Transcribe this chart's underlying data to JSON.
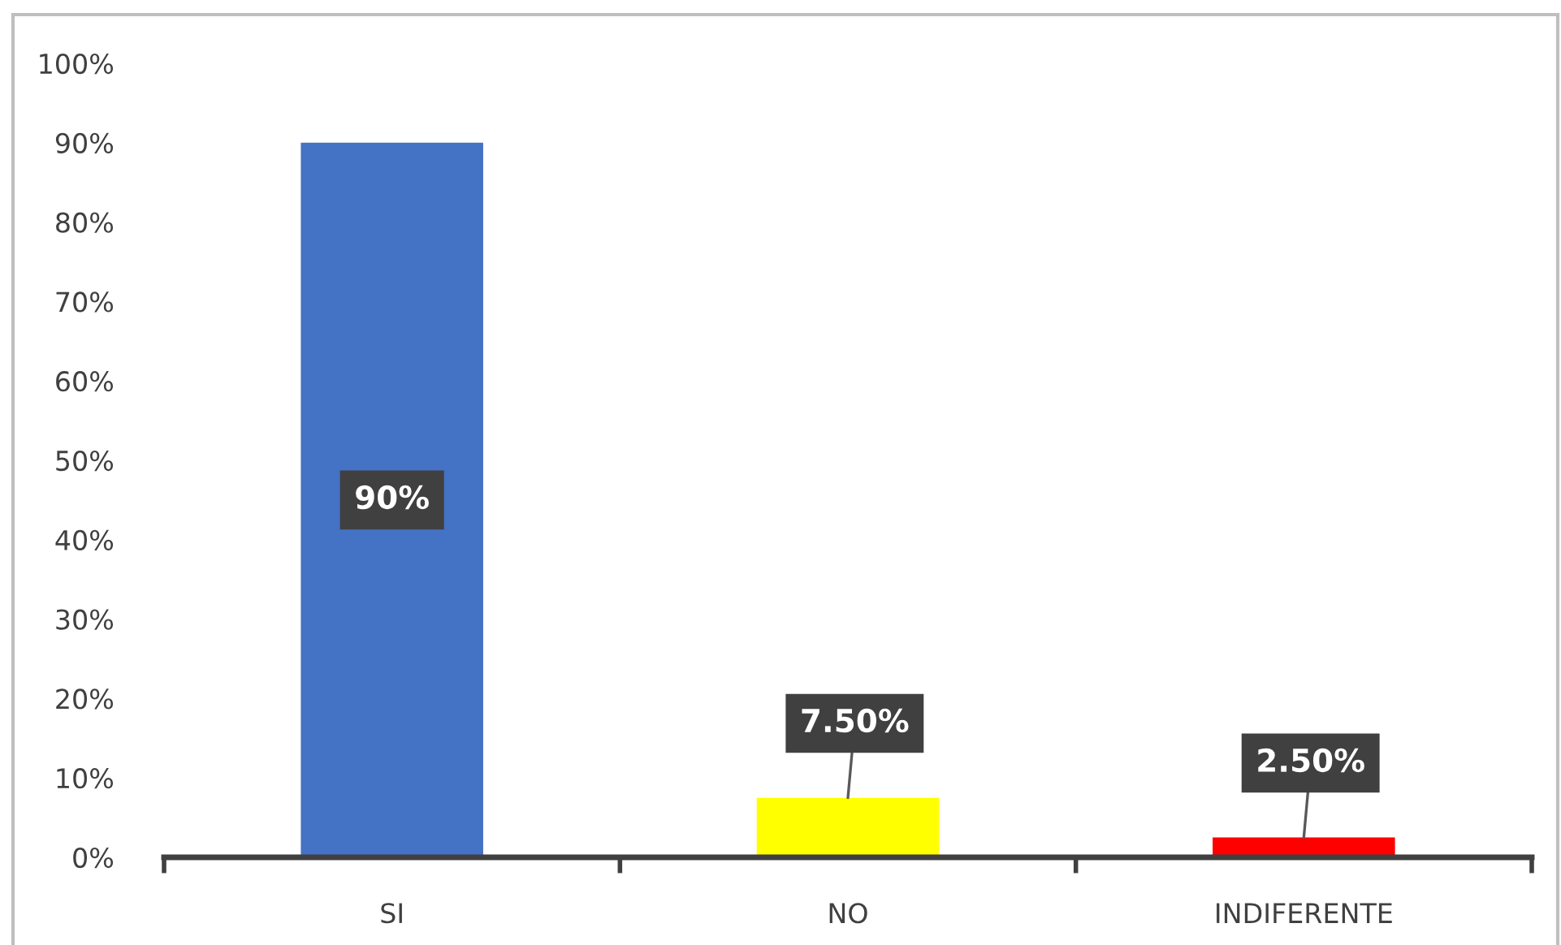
{
  "chart_data": {
    "type": "bar",
    "categories": [
      "SI",
      "NO",
      "INDIFERENTE"
    ],
    "values": [
      90,
      7.5,
      2.5
    ],
    "colors": [
      "#4472c4",
      "#ffff00",
      "#ff0000"
    ],
    "value_labels": [
      "90%",
      "7.50%",
      "2.50%"
    ],
    "ylim": [
      0,
      100
    ],
    "yticks": [
      {
        "value": 0,
        "label": "0%"
      },
      {
        "value": 10,
        "label": "10%"
      },
      {
        "value": 20,
        "label": "20%"
      },
      {
        "value": 30,
        "label": "30%"
      },
      {
        "value": 40,
        "label": "40%"
      },
      {
        "value": 50,
        "label": "50%"
      },
      {
        "value": 60,
        "label": "60%"
      },
      {
        "value": 70,
        "label": "70%"
      },
      {
        "value": 80,
        "label": "80%"
      },
      {
        "value": 90,
        "label": "90%"
      },
      {
        "value": 100,
        "label": "100%"
      }
    ]
  }
}
